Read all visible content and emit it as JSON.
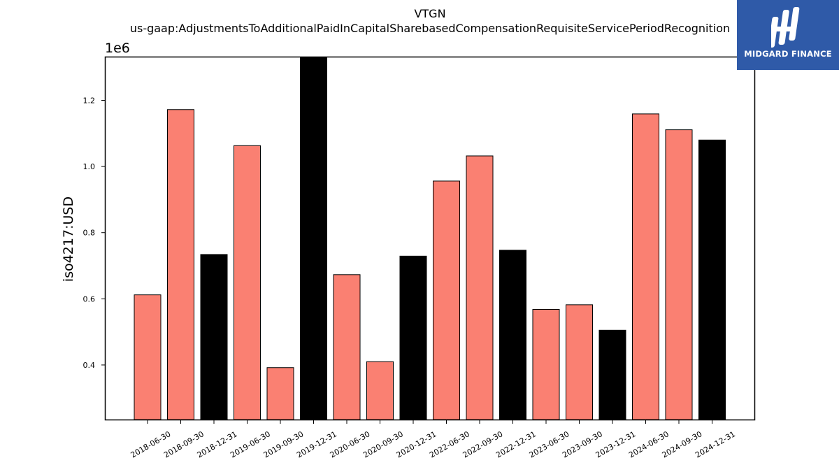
{
  "chart_data": {
    "type": "bar",
    "title": "VTGN",
    "subtitle": "us-gaap:AdjustmentsToAdditionalPaidInCapitalSharebasedCompensationRequisiteServicePeriodRecognition",
    "ylabel": "iso4217:USD",
    "xlabel": "",
    "y_scale_label": "1e6",
    "ylim": [
      0.235,
      1.33
    ],
    "yticks": [
      0.4,
      0.6,
      0.8,
      1.0,
      1.2
    ],
    "ytick_labels": [
      "0.4",
      "0.6",
      "0.8",
      "1.0",
      "1.2"
    ],
    "categories": [
      "2018-06-30",
      "2018-09-30",
      "2018-12-31",
      "2019-06-30",
      "2019-09-30",
      "2019-12-31",
      "2020-06-30",
      "2020-09-30",
      "2020-12-31",
      "2022-06-30",
      "2022-09-30",
      "2022-12-31",
      "2023-06-30",
      "2023-09-30",
      "2023-12-31",
      "2024-06-30",
      "2024-09-30",
      "2024-12-31"
    ],
    "values": [
      0.612,
      1.172,
      0.734,
      1.063,
      0.392,
      1.33,
      0.673,
      0.41,
      0.729,
      0.956,
      1.032,
      0.747,
      0.568,
      0.582,
      0.505,
      1.159,
      1.111,
      1.08
    ],
    "bar_colors": [
      "#fa8072",
      "#fa8072",
      "#000000",
      "#fa8072",
      "#fa8072",
      "#000000",
      "#fa8072",
      "#fa8072",
      "#000000",
      "#fa8072",
      "#fa8072",
      "#000000",
      "#fa8072",
      "#fa8072",
      "#000000",
      "#fa8072",
      "#fa8072",
      "#000000"
    ],
    "grid": false,
    "legend": "none"
  },
  "logo": {
    "text": "MIDGARD FINANCE",
    "background": "#2f5aa8"
  }
}
